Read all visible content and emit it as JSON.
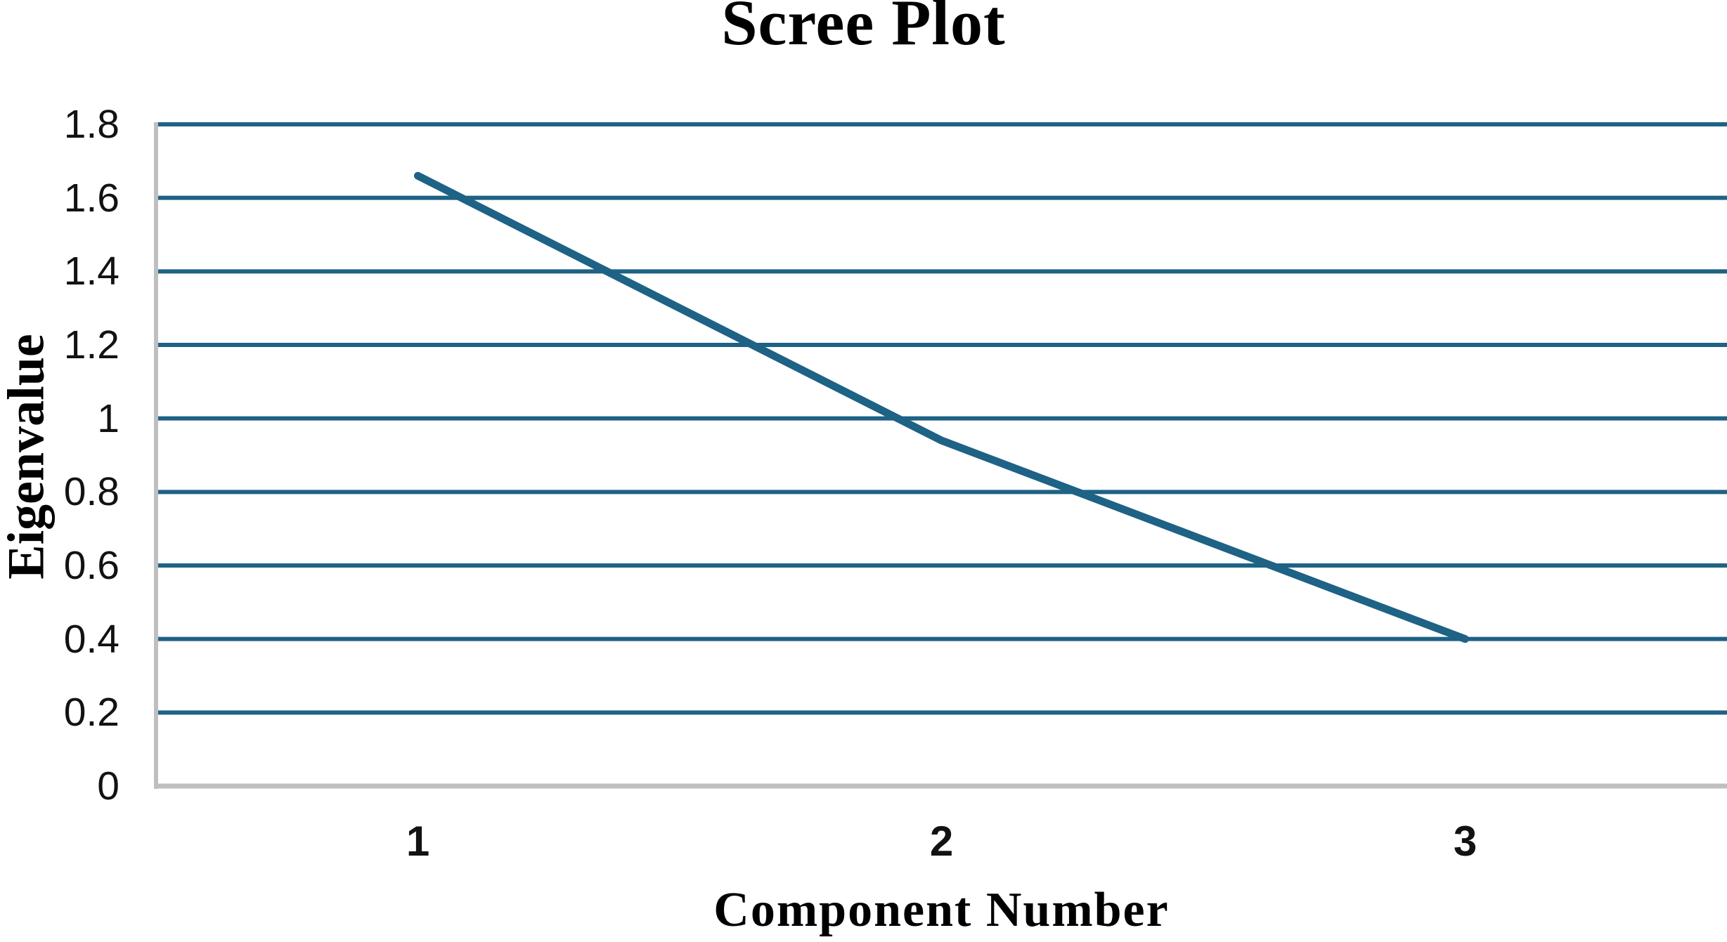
{
  "chart_data": {
    "type": "line",
    "title": "Scree Plot",
    "xlabel": "Component Number",
    "ylabel": "Eigenvalue",
    "categories": [
      "1",
      "2",
      "3"
    ],
    "series": [
      {
        "name": "Eigenvalue",
        "values": [
          1.66,
          0.94,
          0.4
        ]
      }
    ],
    "ylim": [
      0,
      1.8
    ],
    "ytick_values": [
      1.8,
      1.6,
      1.4,
      1.2,
      1.0,
      0.8,
      0.6,
      0.4,
      0.2,
      0
    ],
    "ytick_labels": [
      "1.8",
      "1.6",
      "1.4",
      "1.2",
      "1",
      "0.8",
      "0.6",
      "0.4",
      "0.2",
      "0"
    ],
    "grid": "horizontal",
    "legend_position": "none",
    "colors": {
      "line": "#1E6285",
      "gridline": "#1E6285",
      "axis": "#BFBFBF",
      "text": "#000000"
    }
  }
}
